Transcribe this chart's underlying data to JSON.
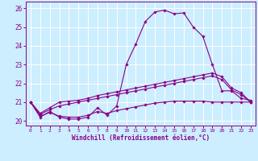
{
  "title": "",
  "xlabel": "Windchill (Refroidissement éolien,°C)",
  "bg_color": "#cceeff",
  "grid_color": "#ffffff",
  "line_color": "#880088",
  "marker": "D",
  "markersize": 1.8,
  "linewidth": 0.8,
  "xlim": [
    -0.5,
    23.5
  ],
  "ylim": [
    19.75,
    26.35
  ],
  "xticks": [
    0,
    1,
    2,
    3,
    4,
    5,
    6,
    7,
    8,
    9,
    10,
    11,
    12,
    13,
    14,
    15,
    16,
    17,
    18,
    19,
    20,
    21,
    22,
    23
  ],
  "yticks": [
    20,
    21,
    22,
    23,
    24,
    25,
    26
  ],
  "series": [
    [
      21.0,
      20.2,
      20.5,
      20.2,
      20.1,
      20.1,
      20.2,
      20.7,
      20.3,
      20.8,
      23.0,
      24.1,
      25.3,
      25.8,
      25.9,
      25.7,
      25.75,
      25.0,
      24.5,
      23.0,
      21.6,
      21.6,
      21.2,
      21.1
    ],
    [
      21.0,
      20.4,
      20.7,
      21.0,
      21.05,
      21.1,
      21.2,
      21.35,
      21.45,
      21.55,
      21.65,
      21.75,
      21.85,
      21.95,
      22.05,
      22.15,
      22.25,
      22.35,
      22.45,
      22.55,
      22.35,
      21.75,
      21.5,
      21.0
    ],
    [
      21.0,
      20.35,
      20.6,
      20.8,
      20.9,
      21.0,
      21.1,
      21.2,
      21.3,
      21.4,
      21.5,
      21.6,
      21.7,
      21.8,
      21.9,
      22.0,
      22.1,
      22.2,
      22.3,
      22.4,
      22.2,
      21.65,
      21.4,
      21.0
    ],
    [
      21.0,
      20.25,
      20.45,
      20.25,
      20.2,
      20.2,
      20.3,
      20.5,
      20.4,
      20.55,
      20.65,
      20.75,
      20.85,
      20.95,
      21.0,
      21.05,
      21.05,
      21.05,
      21.05,
      21.0,
      21.0,
      21.0,
      21.0,
      21.0
    ]
  ]
}
